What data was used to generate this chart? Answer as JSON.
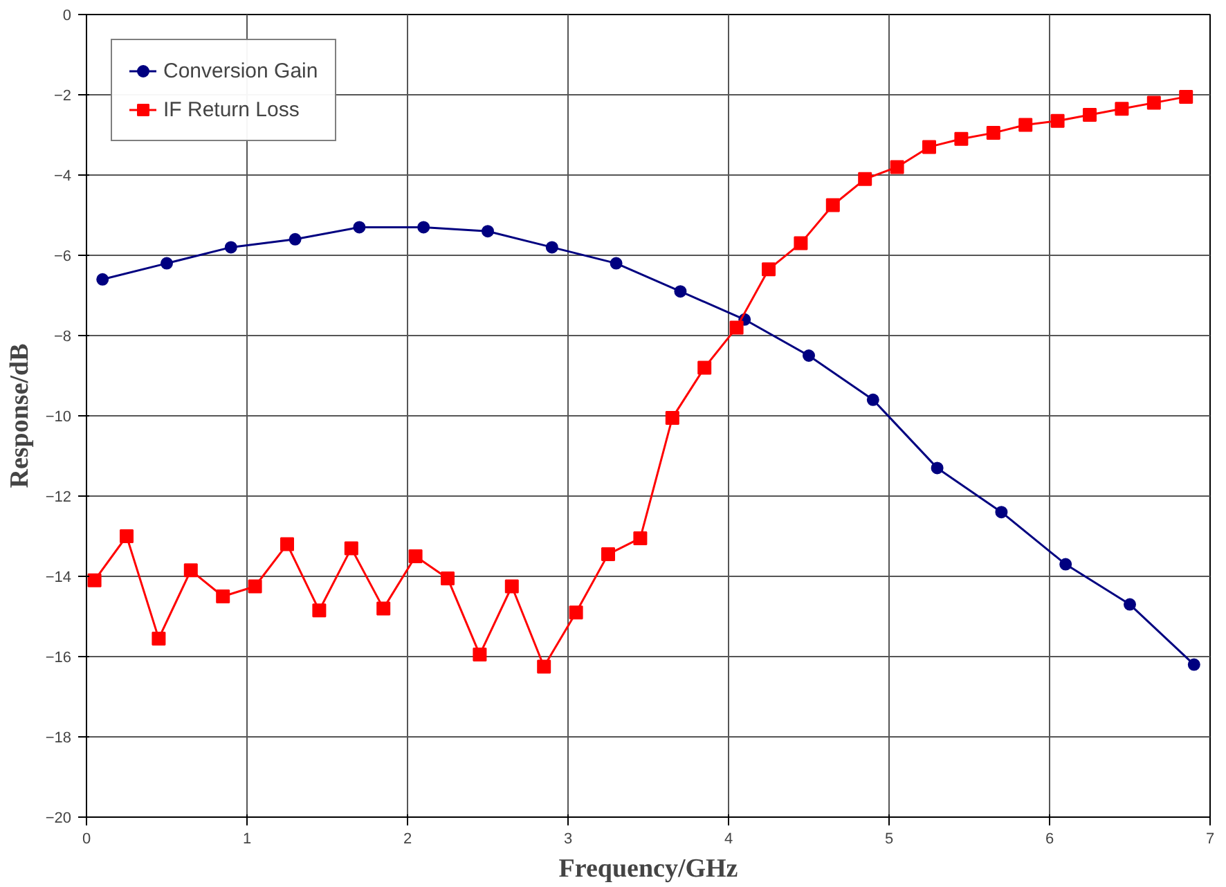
{
  "chart_data": {
    "type": "line",
    "xlabel": "Frequency/GHz",
    "ylabel": "Response/dB",
    "xlim": [
      0,
      7
    ],
    "xticks": [
      0,
      1,
      2,
      3,
      4,
      5,
      6,
      7
    ],
    "ylim": [
      -20,
      0
    ],
    "yticks": [
      -20,
      -18,
      -16,
      -14,
      -12,
      -10,
      -8,
      -6,
      -4,
      -2,
      0
    ],
    "grid": true,
    "legend": "top left",
    "series": [
      {
        "name": "Conversion Gain",
        "color": "#000080",
        "marker": "circle",
        "x": [
          0.1,
          0.5,
          0.9,
          1.3,
          1.7,
          2.1,
          2.5,
          2.9,
          3.3,
          3.7,
          4.1,
          4.5,
          4.9,
          5.3,
          5.7,
          6.1,
          6.5,
          6.9
        ],
        "values": [
          -6.6,
          -6.2,
          -5.8,
          -5.6,
          -5.3,
          -5.3,
          -5.4,
          -5.8,
          -6.2,
          -6.9,
          -7.6,
          -8.5,
          -9.6,
          -11.3,
          -12.4,
          -13.7,
          -14.7,
          -16.2
        ]
      },
      {
        "name": "IF Return Loss",
        "color": "#ff0000",
        "marker": "square",
        "x": [
          0.05,
          0.25,
          0.45,
          0.65,
          0.85,
          1.05,
          1.25,
          1.45,
          1.65,
          1.85,
          2.05,
          2.25,
          2.45,
          2.65,
          2.85,
          3.05,
          3.25,
          3.45,
          3.65,
          3.85,
          4.05,
          4.25,
          4.45,
          4.65,
          4.85,
          5.05,
          5.25,
          5.45,
          5.65,
          5.85,
          6.05,
          6.25,
          6.45,
          6.65,
          6.85
        ],
        "values": [
          -14.1,
          -13.0,
          -15.55,
          -13.85,
          -14.5,
          -14.25,
          -13.2,
          -14.85,
          -13.3,
          -14.8,
          -13.5,
          -14.05,
          -15.95,
          -14.25,
          -16.25,
          -14.9,
          -13.45,
          -13.05,
          -10.05,
          -8.8,
          -7.8,
          -6.35,
          -5.7,
          -4.75,
          -4.1,
          -3.8,
          -3.3,
          -3.1,
          -2.95,
          -2.75,
          -2.65,
          -2.5,
          -2.35,
          -2.2,
          -2.05
        ]
      }
    ]
  }
}
